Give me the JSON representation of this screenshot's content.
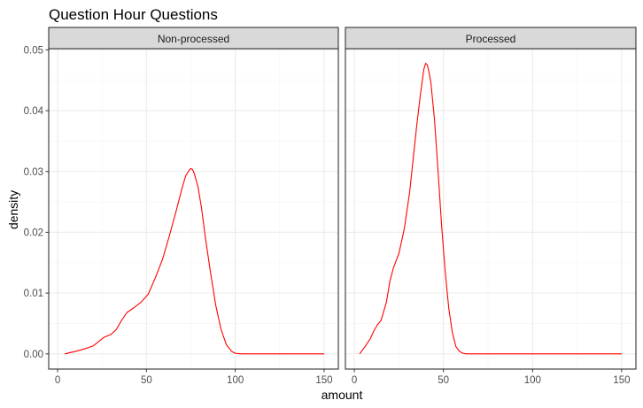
{
  "chart_data": {
    "type": "line",
    "title": "Question Hour Questions",
    "xlabel": "amount",
    "ylabel": "density",
    "xlim": [
      -5,
      158
    ],
    "ylim": [
      -0.0025,
      0.0502
    ],
    "x_ticks": [
      0,
      50,
      100,
      150
    ],
    "x_tick_labels": [
      "0",
      "50",
      "100",
      "150"
    ],
    "y_ticks": [
      0.0,
      0.01,
      0.02,
      0.03,
      0.04,
      0.05
    ],
    "y_tick_labels": [
      "0.00",
      "0.01",
      "0.02",
      "0.03",
      "0.04",
      "0.05"
    ],
    "grid": true,
    "line_color": "#ff0000",
    "panel_border_color": "#333333",
    "grid_major_color": "#ebebeb",
    "grid_minor_color": "#f5f5f5",
    "strip_background": "#d9d9d9",
    "panels": [
      {
        "name": "Non-processed",
        "x": [
          4,
          10,
          15,
          20,
          23,
          26,
          30,
          33,
          36,
          39,
          43,
          47,
          51,
          55,
          59,
          63,
          67,
          70,
          72,
          74,
          75,
          76,
          77,
          79,
          81,
          83,
          86,
          89,
          92,
          95,
          98,
          100,
          103,
          106,
          110,
          120,
          130,
          140,
          150
        ],
        "y": [
          0.0,
          0.0004,
          0.0008,
          0.0013,
          0.002,
          0.0027,
          0.0032,
          0.004,
          0.0055,
          0.0068,
          0.0076,
          0.0085,
          0.0098,
          0.0125,
          0.0155,
          0.0195,
          0.0238,
          0.0272,
          0.0292,
          0.0302,
          0.0305,
          0.0303,
          0.0296,
          0.0275,
          0.024,
          0.0195,
          0.0135,
          0.008,
          0.004,
          0.0015,
          0.0004,
          0.0001,
          0.0,
          0.0,
          0.0,
          0.0,
          0.0,
          0.0,
          0.0
        ]
      },
      {
        "name": "Processed",
        "x": [
          3,
          6,
          9,
          11,
          13,
          15,
          18,
          20,
          22,
          25,
          28,
          31,
          33,
          35,
          37,
          39,
          40,
          41,
          42,
          43,
          45,
          47,
          49,
          51,
          53,
          55,
          57,
          59,
          61,
          63,
          66,
          70,
          80,
          100,
          120,
          150
        ],
        "y": [
          0.0,
          0.0012,
          0.0025,
          0.0038,
          0.0048,
          0.0055,
          0.0085,
          0.012,
          0.0142,
          0.0165,
          0.0205,
          0.0265,
          0.032,
          0.0375,
          0.0425,
          0.0468,
          0.0478,
          0.0475,
          0.0462,
          0.0445,
          0.0385,
          0.03,
          0.021,
          0.0135,
          0.0075,
          0.0035,
          0.0012,
          0.0004,
          0.0001,
          0.0,
          0.0,
          0.0,
          0.0,
          0.0,
          0.0,
          0.0
        ]
      }
    ]
  }
}
